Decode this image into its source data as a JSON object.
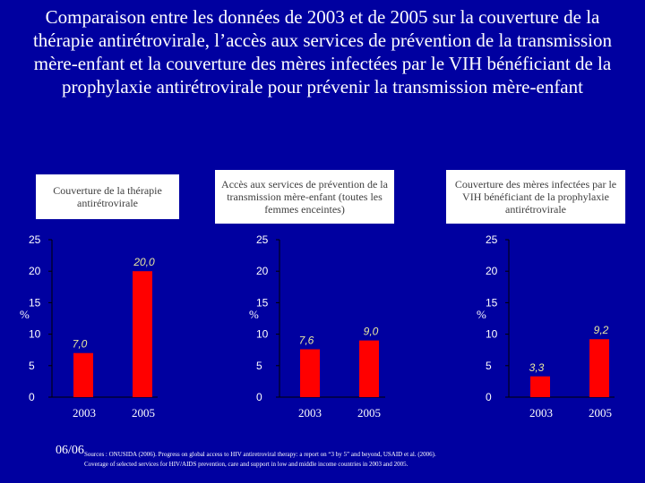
{
  "title": "Comparaison entre les données de 2003 et de 2005 sur la couverture de la thérapie antirétrovirale, l’accès aux services de prévention de la transmission mère-enfant et la couverture des mères infectées par le VIH bénéficiant de la prophylaxie antirétrovirale pour prévenir la transmission mère-enfant",
  "colors": {
    "background": "#0000a0",
    "bar": "#ff0000",
    "label": "#e8e8a0"
  },
  "chart_data": [
    {
      "type": "bar",
      "title": "Couverture de la thérapie antirétrovirale",
      "categories": [
        "2003",
        "2005"
      ],
      "values": [
        7.0,
        20.0
      ],
      "value_labels": [
        "7,0",
        "20,0"
      ],
      "ylabel": "%",
      "ylim": [
        0,
        25
      ],
      "yticks": [
        "0",
        "5",
        "10",
        "15",
        "20",
        "25"
      ]
    },
    {
      "type": "bar",
      "title": "Accès aux services de prévention de la transmission mère-enfant (toutes les femmes enceintes)",
      "categories": [
        "2003",
        "2005"
      ],
      "values": [
        7.6,
        9.0
      ],
      "value_labels": [
        "7,6",
        "9,0"
      ],
      "ylabel": "%",
      "ylim": [
        0,
        25
      ],
      "yticks": [
        "0",
        "5",
        "10",
        "15",
        "20",
        "25"
      ]
    },
    {
      "type": "bar",
      "title": "Couverture des mères infectées par le VIH bénéficiant de la prophylaxie antirétrovirale",
      "categories": [
        "2003",
        "2005"
      ],
      "values": [
        3.3,
        9.2
      ],
      "value_labels": [
        "3,3",
        "9,2"
      ],
      "ylabel": "%",
      "ylim": [
        0,
        25
      ],
      "yticks": [
        "0",
        "5",
        "10",
        "15",
        "20",
        "25"
      ]
    }
  ],
  "footer": {
    "date": "06/06",
    "source_line1": "Sources : ONUSIDA (2006). Progress on global access to HIV antiretroviral therapy: a report on “3 by 5” and beyond, USAID et al. (2006).",
    "source_line2": "Coverage of selected services for HIV/AIDS prevention, care and support in low and middle income countries in 2003 and 2005."
  }
}
